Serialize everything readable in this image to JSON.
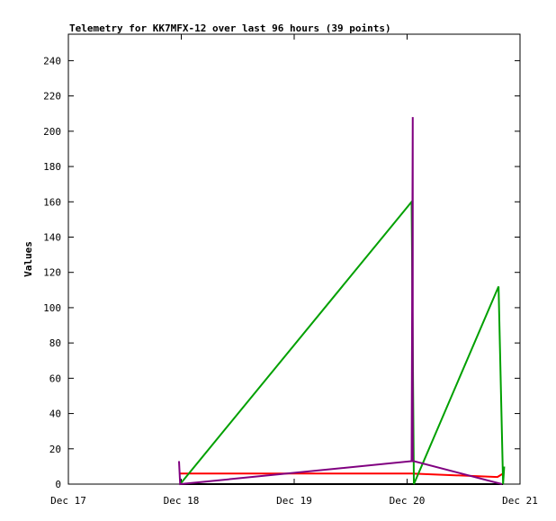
{
  "chart_data": {
    "type": "line",
    "title": "Telemetry for KK7MFX-12 over last 96 hours (39 points)",
    "y_label": "Values",
    "xlim": [
      17,
      21
    ],
    "xticks": [
      {
        "value": 17,
        "label": "Dec 17"
      },
      {
        "value": 18,
        "label": "Dec 18"
      },
      {
        "value": 19,
        "label": "Dec 19"
      },
      {
        "value": 20,
        "label": "Dec 20"
      },
      {
        "value": 21,
        "label": "Dec 21"
      }
    ],
    "ylim": [
      0,
      255
    ],
    "yticks": [
      0,
      20,
      40,
      60,
      80,
      100,
      120,
      140,
      160,
      180,
      200,
      220,
      240
    ],
    "series": [
      {
        "color": "#000000",
        "x": [
          17.99,
          20.85
        ],
        "values": [
          0,
          0
        ]
      },
      {
        "color": "#ff0000",
        "x": [
          17.99,
          20.04,
          20.8,
          20.85
        ],
        "values": [
          6,
          6,
          4,
          6
        ]
      },
      {
        "color": "#00a000",
        "x": [
          17.99,
          20.04,
          20.06,
          20.81,
          20.85,
          20.86
        ],
        "values": [
          0,
          160,
          0,
          112,
          0,
          10
        ]
      },
      {
        "color": "#800080",
        "x": [
          17.98,
          17.99,
          20.04,
          20.05,
          20.05,
          20.06,
          20.84
        ],
        "values": [
          13,
          0,
          13,
          208,
          13,
          13,
          0
        ]
      }
    ]
  }
}
